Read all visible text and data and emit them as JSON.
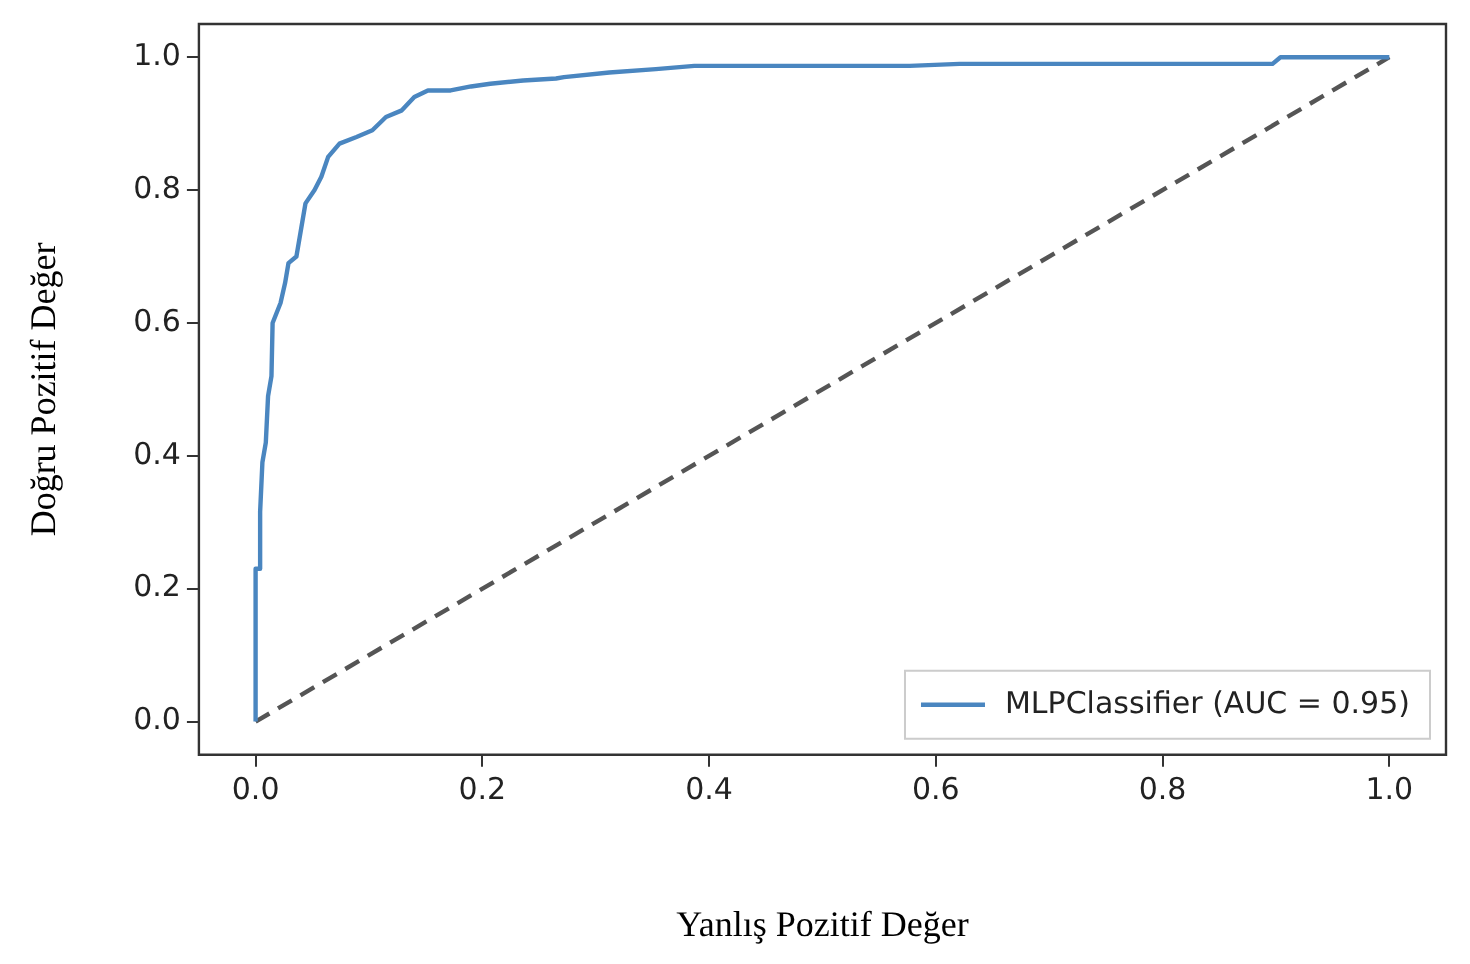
{
  "chart_data": {
    "type": "line",
    "xlabel": "Yanlış Pozitif Değer",
    "ylabel": "Doğru Pozitif Değer",
    "xlim": [
      -0.05,
      1.05
    ],
    "ylim": [
      -0.05,
      1.05
    ],
    "xticks": [
      {
        "value": 0,
        "label": "0.0"
      },
      0.2,
      0.4,
      0.6,
      0.8,
      {
        "value": 1,
        "label": "1.0"
      }
    ],
    "yticks": [
      {
        "value": 0,
        "label": "0.0"
      },
      0.2,
      0.4,
      0.6,
      0.8,
      {
        "value": 1,
        "label": "1.0"
      }
    ],
    "grid": false,
    "legend": "bottom right",
    "marker": "none",
    "series": [
      {
        "name": "MLPClassifier (AUC = 0.95)",
        "color": "#4a86c0",
        "line_style": "solid",
        "x": [
          0,
          0,
          0.004,
          0.004,
          0.006,
          0.009,
          0.011,
          0.014,
          0.015,
          0.022,
          0.026,
          0.029,
          0.036,
          0.04,
          0.044,
          0.052,
          0.058,
          0.064,
          0.074,
          0.089,
          0.103,
          0.115,
          0.129,
          0.14,
          0.152,
          0.172,
          0.19,
          0.207,
          0.236,
          0.265,
          0.272,
          0.312,
          0.353,
          0.387,
          0.577,
          0.621,
          0.897,
          0.904,
          1.0
        ],
        "values": [
          0,
          0.23,
          0.23,
          0.316,
          0.39,
          0.42,
          0.49,
          0.52,
          0.6,
          0.63,
          0.66,
          0.69,
          0.7,
          0.74,
          0.78,
          0.8,
          0.82,
          0.85,
          0.87,
          0.88,
          0.89,
          0.91,
          0.92,
          0.94,
          0.95,
          0.95,
          0.956,
          0.96,
          0.965,
          0.968,
          0.97,
          0.977,
          0.982,
          0.987,
          0.987,
          0.99,
          0.99,
          1.0,
          1.0
        ]
      },
      {
        "type": "line",
        "color": "#555555",
        "line_style": "dashed",
        "x": [
          0,
          1
        ],
        "values": [
          0,
          1
        ]
      }
    ]
  }
}
